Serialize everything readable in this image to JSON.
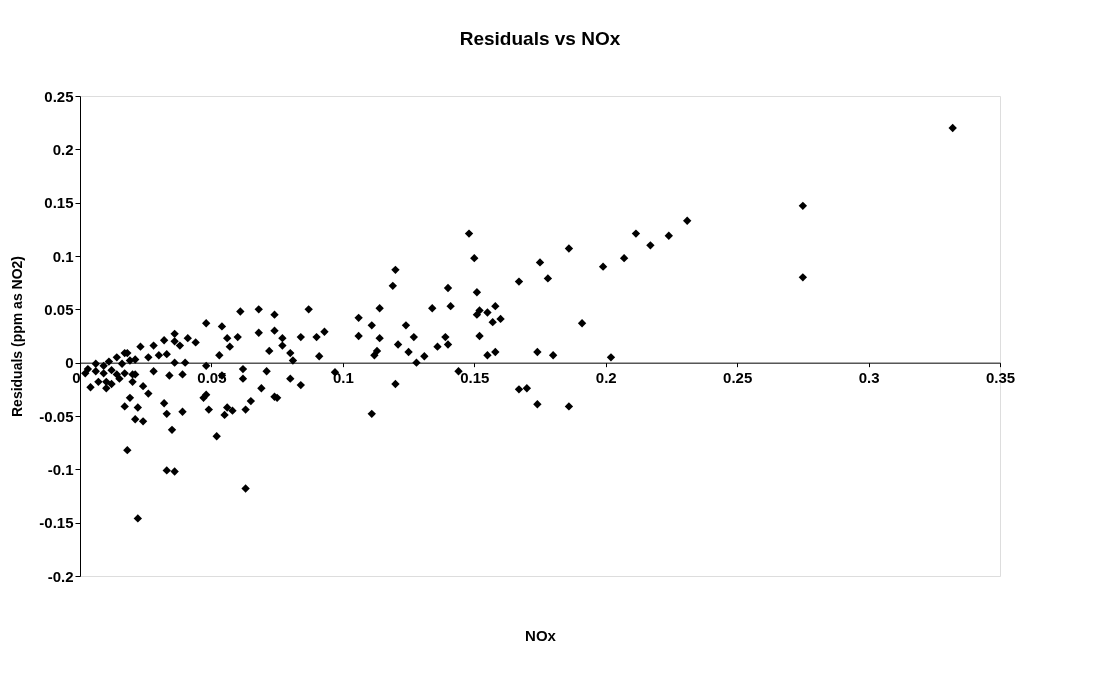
{
  "chart_data": {
    "type": "scatter",
    "title": "Residuals vs NOx",
    "xlabel": "NOx",
    "ylabel": "Residuals (ppm as NO2)",
    "xlim": [
      0,
      0.35
    ],
    "xticks": [
      0,
      0.05,
      0.1,
      0.15,
      0.2,
      0.25,
      0.3,
      0.35
    ],
    "ylim": [
      -0.2,
      0.25
    ],
    "yticks": [
      -0.2,
      -0.15,
      -0.1,
      -0.05,
      0,
      0.05,
      0.1,
      0.15,
      0.2,
      0.25
    ],
    "grid": false,
    "marker": "diamond",
    "series": [
      {
        "color": "#000000",
        "x": [
          0.332,
          0.275,
          0.275,
          0.231,
          0.224,
          0.217,
          0.2115,
          0.207,
          0.199,
          0.186,
          0.175,
          0.178,
          0.167,
          0.191,
          0.202,
          0.174,
          0.18,
          0.167,
          0.17,
          0.174,
          0.186,
          0.148,
          0.15,
          0.151,
          0.152,
          0.151,
          0.155,
          0.158,
          0.157,
          0.16,
          0.152,
          0.155,
          0.158,
          0.14,
          0.141,
          0.134,
          0.139,
          0.14,
          0.136,
          0.131,
          0.128,
          0.144,
          0.12,
          0.119,
          0.114,
          0.106,
          0.111,
          0.124,
          0.106,
          0.114,
          0.121,
          0.127,
          0.125,
          0.113,
          0.112,
          0.097,
          0.12,
          0.111,
          0.087,
          0.093,
          0.09,
          0.084,
          0.091,
          0.08,
          0.081,
          0.08,
          0.084,
          0.074,
          0.075,
          0.077,
          0.077,
          0.074,
          0.074,
          0.068,
          0.068,
          0.072,
          0.061,
          0.06,
          0.056,
          0.057,
          0.054,
          0.053,
          0.048,
          0.048,
          0.062,
          0.062,
          0.071,
          0.069,
          0.065,
          0.063,
          0.058,
          0.056,
          0.055,
          0.049,
          0.052,
          0.063,
          0.054,
          0.048,
          0.047,
          0.039,
          0.035,
          0.033,
          0.032,
          0.033,
          0.036,
          0.022,
          0.018,
          0.017,
          0.019,
          0.022,
          0.021,
          0.024,
          0.026,
          0.024,
          0.039,
          0.034,
          0.028,
          0.02,
          0.041,
          0.044,
          0.036,
          0.036,
          0.038,
          0.032,
          0.028,
          0.023,
          0.033,
          0.03,
          0.036,
          0.04,
          0.026,
          0.018,
          0.021,
          0.003,
          0.004,
          0.006,
          0.009,
          0.01,
          0.011,
          0.012,
          0.014,
          0.015,
          0.016,
          0.017,
          0.012,
          0.007,
          0.002,
          0.01,
          0.014,
          0.006,
          0.009,
          0.019,
          0.02,
          0.017,
          0.021
        ],
        "values": [
          0.22,
          0.147,
          0.08,
          0.133,
          0.119,
          0.11,
          0.121,
          0.098,
          0.09,
          0.107,
          0.094,
          0.079,
          0.076,
          0.037,
          0.005,
          0.01,
          0.007,
          -0.025,
          -0.024,
          -0.039,
          -0.041,
          0.121,
          0.098,
          0.066,
          0.049,
          0.045,
          0.047,
          0.053,
          0.038,
          0.041,
          0.025,
          0.007,
          0.01,
          0.07,
          0.053,
          0.051,
          0.024,
          0.017,
          0.015,
          0.006,
          0.0,
          -0.008,
          0.087,
          0.072,
          0.051,
          0.042,
          0.035,
          0.035,
          0.025,
          0.023,
          0.017,
          0.024,
          0.01,
          0.011,
          0.007,
          -0.009,
          -0.02,
          -0.048,
          0.05,
          0.029,
          0.024,
          0.024,
          0.006,
          0.009,
          0.002,
          -0.015,
          -0.021,
          -0.032,
          -0.033,
          0.023,
          0.016,
          0.045,
          0.03,
          0.05,
          0.028,
          0.011,
          0.048,
          0.024,
          0.023,
          0.015,
          0.034,
          0.007,
          0.037,
          -0.003,
          -0.006,
          -0.015,
          -0.008,
          -0.024,
          -0.036,
          -0.044,
          -0.045,
          -0.042,
          -0.049,
          -0.044,
          -0.069,
          -0.118,
          -0.012,
          -0.03,
          -0.033,
          -0.046,
          -0.063,
          -0.048,
          -0.038,
          -0.101,
          -0.102,
          -0.146,
          -0.082,
          -0.041,
          -0.033,
          -0.042,
          -0.053,
          -0.055,
          -0.029,
          -0.022,
          -0.011,
          -0.012,
          -0.008,
          -0.011,
          0.023,
          0.019,
          0.027,
          0.02,
          0.016,
          0.021,
          0.016,
          0.015,
          0.008,
          0.007,
          0.0,
          0.0,
          0.005,
          0.009,
          0.003,
          -0.006,
          -0.023,
          -0.001,
          -0.01,
          -0.018,
          0.001,
          -0.007,
          0.005,
          -0.015,
          -0.001,
          -0.01,
          -0.02,
          -0.018,
          -0.01,
          -0.024,
          -0.011,
          -0.008,
          -0.003,
          0.002,
          -0.018,
          0.009,
          -0.011
        ]
      }
    ]
  }
}
